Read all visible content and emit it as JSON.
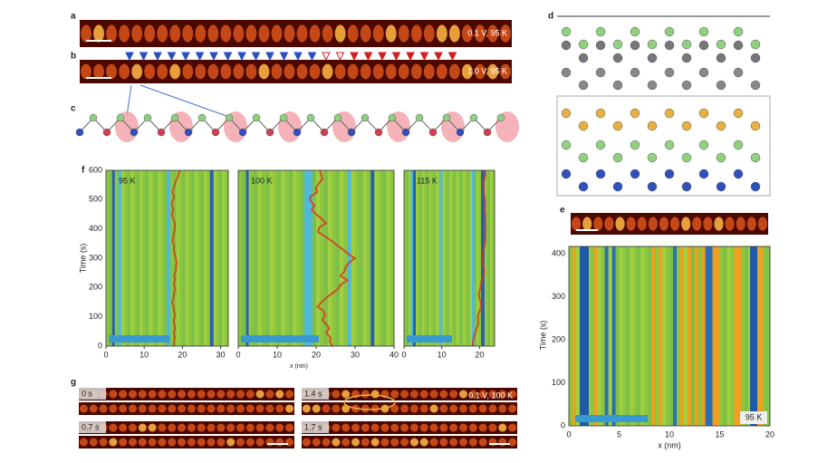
{
  "panels": {
    "a": {
      "label": "a",
      "annotation": "0.1 V, 95 K"
    },
    "b": {
      "label": "b",
      "annotation": "1.0 V, 95 K"
    },
    "c": {
      "label": "c"
    },
    "d": {
      "label": "d"
    },
    "e": {
      "label": "e",
      "y_label": "Time (s)",
      "x_label": "x (nm)",
      "yticks": [
        0,
        100,
        200,
        300,
        400
      ],
      "xticks": [
        0,
        5,
        10,
        15,
        20
      ],
      "tag": "95 K"
    },
    "f": {
      "label": "f",
      "y_label": "Time (s)",
      "x_label": "x (nm)",
      "yticks": [
        0,
        100,
        200,
        300,
        400,
        500,
        600
      ],
      "subpanels": [
        {
          "tag": "95 K",
          "xticks": [
            0,
            10,
            20,
            30
          ]
        },
        {
          "tag": "100 K",
          "xticks": [
            0,
            10,
            20,
            30,
            40
          ]
        },
        {
          "tag": "115 K",
          "xticks": [
            0,
            10,
            20
          ]
        }
      ]
    },
    "g": {
      "label": "g",
      "annotation": "0.1 V, 100 K",
      "frames": [
        "0 s",
        "1.4 s",
        "0.7 s",
        "1.7 s"
      ]
    }
  }
}
